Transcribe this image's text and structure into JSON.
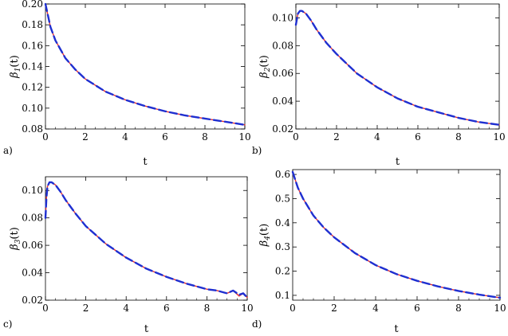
{
  "chart_data": [
    {
      "type": "line",
      "panel_label": "a)",
      "xlabel": "t",
      "ylabel": {
        "symbol": "β",
        "sub": "1",
        "rest": "(t)"
      },
      "xlim": [
        0,
        10
      ],
      "ylim": [
        0.08,
        0.2
      ],
      "xticks": [
        0,
        2,
        4,
        6,
        8,
        10
      ],
      "yticks": [
        "0.08",
        "0.10",
        "0.12",
        "0.14",
        "0.16",
        "0.18",
        "0.20"
      ],
      "series": [
        {
          "color": "#e83030",
          "style": "solid",
          "x": [
            0,
            0.25,
            0.5,
            1,
            1.5,
            2,
            3,
            4,
            5,
            6,
            7,
            8,
            9,
            10
          ],
          "y": [
            0.2,
            0.178,
            0.165,
            0.148,
            0.137,
            0.128,
            0.116,
            0.108,
            0.102,
            0.097,
            0.093,
            0.09,
            0.087,
            0.084
          ]
        },
        {
          "color": "#1f2fd0",
          "style": "dashed",
          "x": [
            0,
            0.25,
            0.5,
            1,
            1.5,
            2,
            3,
            4,
            5,
            6,
            7,
            8,
            9,
            10
          ],
          "y": [
            0.2,
            0.178,
            0.165,
            0.148,
            0.137,
            0.128,
            0.116,
            0.108,
            0.102,
            0.097,
            0.093,
            0.09,
            0.087,
            0.084
          ]
        }
      ]
    },
    {
      "type": "line",
      "panel_label": "b)",
      "xlabel": "t",
      "ylabel": {
        "symbol": "β",
        "sub": "2",
        "rest": "(t)"
      },
      "xlim": [
        0,
        10
      ],
      "ylim": [
        0.02,
        0.11
      ],
      "xticks": [
        0,
        2,
        4,
        6,
        8,
        10
      ],
      "yticks": [
        "0.02",
        "0.04",
        "0.06",
        "0.08",
        "0.10"
      ],
      "series": [
        {
          "color": "#e83030",
          "style": "solid",
          "x": [
            0,
            0.1,
            0.2,
            0.3,
            0.5,
            0.75,
            1,
            1.5,
            2,
            3,
            4,
            5,
            6,
            7,
            8,
            9,
            10
          ],
          "y": [
            0.095,
            0.103,
            0.105,
            0.105,
            0.103,
            0.098,
            0.092,
            0.082,
            0.074,
            0.06,
            0.05,
            0.042,
            0.036,
            0.032,
            0.028,
            0.025,
            0.023
          ]
        },
        {
          "color": "#1f2fd0",
          "style": "dashed",
          "x": [
            0,
            0.1,
            0.2,
            0.3,
            0.5,
            0.75,
            1,
            1.5,
            2,
            3,
            4,
            5,
            6,
            7,
            8,
            9,
            10
          ],
          "y": [
            0.095,
            0.103,
            0.105,
            0.105,
            0.103,
            0.098,
            0.092,
            0.082,
            0.074,
            0.06,
            0.05,
            0.042,
            0.036,
            0.032,
            0.028,
            0.025,
            0.023
          ]
        }
      ]
    },
    {
      "type": "line",
      "panel_label": "c)",
      "xlabel": "t",
      "ylabel": {
        "symbol": "β",
        "sub": "3",
        "rest": "(t)"
      },
      "xlim": [
        0,
        10
      ],
      "ylim": [
        0.02,
        0.11
      ],
      "xticks": [
        0,
        2,
        4,
        6,
        8,
        10
      ],
      "yticks": [
        "0.02",
        "0.04",
        "0.06",
        "0.08",
        "0.10"
      ],
      "series": [
        {
          "color": "#e83030",
          "style": "solid",
          "x": [
            0,
            0.05,
            0.1,
            0.2,
            0.3,
            0.5,
            0.75,
            1,
            1.5,
            2,
            3,
            4,
            5,
            6,
            7,
            8,
            8.5,
            9,
            9.3,
            9.6,
            9.8,
            10
          ],
          "y": [
            0.08,
            0.095,
            0.103,
            0.106,
            0.106,
            0.104,
            0.099,
            0.093,
            0.083,
            0.074,
            0.061,
            0.051,
            0.043,
            0.037,
            0.032,
            0.028,
            0.027,
            0.025,
            0.027,
            0.023,
            0.025,
            0.022
          ]
        },
        {
          "color": "#1f2fd0",
          "style": "dashed",
          "x": [
            0,
            0.05,
            0.1,
            0.2,
            0.3,
            0.5,
            0.75,
            1,
            1.5,
            2,
            3,
            4,
            5,
            6,
            7,
            8,
            8.5,
            9,
            9.3,
            9.6,
            9.8,
            10
          ],
          "y": [
            0.08,
            0.095,
            0.103,
            0.106,
            0.106,
            0.104,
            0.099,
            0.093,
            0.083,
            0.074,
            0.061,
            0.051,
            0.043,
            0.037,
            0.032,
            0.028,
            0.027,
            0.025,
            0.027,
            0.024,
            0.025,
            0.022
          ]
        }
      ]
    },
    {
      "type": "line",
      "panel_label": "d)",
      "xlabel": "t",
      "ylabel": {
        "symbol": "β",
        "sub": "4",
        "rest": "(t)"
      },
      "xlim": [
        0,
        10
      ],
      "ylim": [
        0.08,
        0.62
      ],
      "xticks": [
        0,
        2,
        4,
        6,
        8,
        10
      ],
      "yticks": [
        "0.1",
        "0.2",
        "0.3",
        "0.4",
        "0.5",
        "0.6"
      ],
      "series": [
        {
          "color": "#e83030",
          "style": "solid",
          "x": [
            0,
            0.25,
            0.5,
            1,
            1.5,
            2,
            3,
            4,
            5,
            6,
            7,
            8,
            9,
            10
          ],
          "y": [
            0.61,
            0.545,
            0.5,
            0.43,
            0.38,
            0.34,
            0.275,
            0.225,
            0.188,
            0.16,
            0.137,
            0.118,
            0.103,
            0.09
          ]
        },
        {
          "color": "#1f2fd0",
          "style": "dashed",
          "x": [
            0,
            0.25,
            0.5,
            1,
            1.5,
            2,
            3,
            4,
            5,
            6,
            7,
            8,
            9,
            10
          ],
          "y": [
            0.61,
            0.545,
            0.5,
            0.43,
            0.38,
            0.34,
            0.275,
            0.225,
            0.188,
            0.16,
            0.137,
            0.118,
            0.103,
            0.09
          ]
        }
      ]
    }
  ]
}
